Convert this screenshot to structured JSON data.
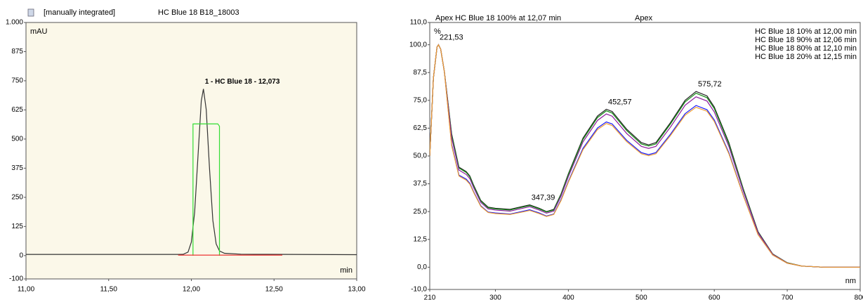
{
  "chart_data": [
    {
      "type": "line",
      "header": [
        "[manually integrated]",
        "HC Blue  18 B18_18003"
      ],
      "ylabel": "mAU",
      "xlabel": "min",
      "xlim": [
        11,
        13
      ],
      "xticks": [
        {
          "value": 11,
          "label": "11,00"
        },
        {
          "value": 11.5,
          "label": "11,50"
        },
        {
          "value": 12,
          "label": "12,00"
        },
        {
          "value": 12.5,
          "label": "12,50"
        },
        {
          "value": 13,
          "label": "13,00"
        }
      ],
      "ylim": [
        -100,
        1000
      ],
      "yticks": [
        {
          "value": 1000,
          "label": "1.000"
        },
        875,
        750,
        625,
        500,
        375,
        250,
        125,
        0,
        -100
      ],
      "background": "#fbf8e9",
      "series": [
        {
          "color": "#333333",
          "x": [
            11,
            11.5,
            11.9,
            11.95,
            11.98,
            12,
            12.02,
            12.04,
            12.06,
            12.073,
            12.09,
            12.11,
            12.13,
            12.15,
            12.17,
            12.2,
            12.3,
            13
          ],
          "values": [
            5,
            5,
            5,
            5.4,
            15,
            58,
            187,
            425,
            663,
            715,
            626,
            372,
            151,
            50,
            20,
            10,
            6,
            4
          ]
        },
        {
          "color": "#33dd33",
          "x": [
            12.01,
            12.01,
            12.16,
            12.17,
            12.17
          ],
          "values": [
            0,
            565,
            565,
            555,
            0
          ]
        },
        {
          "color": "#ee3333",
          "x": [
            11.92,
            12.55
          ],
          "values": [
            2,
            2
          ]
        }
      ],
      "annotations": [
        {
          "text": "1 -  HC Blue 18 - 12,073",
          "x": 12.073,
          "y": 715
        }
      ]
    },
    {
      "type": "line",
      "title": "Apex  HC Blue 18 100% at 12,07 min",
      "subtitle": "Apex",
      "ylabel": "%",
      "xlabel": "nm",
      "xlim": [
        210,
        800
      ],
      "xticks": [
        210,
        300,
        400,
        500,
        600,
        700,
        800
      ],
      "ylim": [
        -10,
        110
      ],
      "yticks": [
        {
          "value": 110,
          "label": "110,0"
        },
        {
          "value": 100,
          "label": "100,0"
        },
        {
          "value": 87.5,
          "label": "87,5"
        },
        {
          "value": 75,
          "label": "75,0"
        },
        {
          "value": 62.5,
          "label": "62,5"
        },
        {
          "value": 50,
          "label": "50,0"
        },
        {
          "value": 37.5,
          "label": "37,5"
        },
        {
          "value": 25,
          "label": "25,0"
        },
        {
          "value": 12.5,
          "label": "12,5"
        },
        {
          "value": 0,
          "label": "0,0"
        },
        {
          "value": -10,
          "label": "-10,0"
        }
      ],
      "background": "#ffffff",
      "x": [
        210,
        215,
        220,
        222,
        225,
        230,
        240,
        250,
        260,
        265,
        270,
        280,
        290,
        300,
        320,
        340,
        347,
        360,
        370,
        380,
        390,
        400,
        420,
        440,
        452,
        460,
        480,
        500,
        510,
        520,
        540,
        560,
        575,
        590,
        600,
        620,
        640,
        660,
        680,
        700,
        720,
        750,
        800
      ],
      "series": [
        {
          "color": "#222222",
          "values": [
            50,
            85,
            99,
            100,
            98,
            88,
            60,
            45,
            43,
            41,
            37,
            30,
            27,
            26.5,
            26,
            27.5,
            28,
            26.5,
            25,
            26,
            33,
            42,
            58,
            68,
            71,
            70,
            62,
            56,
            55,
            56,
            65,
            75,
            79,
            77,
            72,
            56,
            35,
            16,
            6,
            2,
            0.5,
            0,
            0
          ]
        },
        {
          "name": "HC Blue 18 10% at 12,00 min",
          "color": "#1a1aff",
          "values": [
            50,
            85,
            99,
            100,
            98,
            88,
            55.2,
            41.4,
            39.6,
            37.7,
            34,
            27.6,
            24.8,
            24.4,
            23.9,
            25.3,
            25.8,
            24.4,
            23,
            23.9,
            30.4,
            38.6,
            53.4,
            62.6,
            65.3,
            64.4,
            57,
            51.5,
            50.6,
            51.5,
            59.8,
            69,
            72.7,
            70.8,
            66.2,
            51.5,
            32.2,
            14.7,
            5.5,
            1.8,
            0.5,
            0,
            0
          ]
        },
        {
          "name": "HC Blue 18 90% at 12,06 min",
          "color": "#148c14",
          "values": [
            50,
            85,
            99,
            100,
            98,
            88,
            59.4,
            44.6,
            42.6,
            40.6,
            36.6,
            29.7,
            26.7,
            26.2,
            25.7,
            27.2,
            27.7,
            26.2,
            24.8,
            25.7,
            32.7,
            41.6,
            57.4,
            67.3,
            70.3,
            69.3,
            61.4,
            55.4,
            54.5,
            55.4,
            64.4,
            74.3,
            78.2,
            76.2,
            71.3,
            55.4,
            34.7,
            15.8,
            5.9,
            2,
            0.5,
            0,
            0
          ]
        },
        {
          "name": "HC Blue 18 80% at 12,10 min",
          "color": "#8b1a9b",
          "values": [
            50,
            85,
            99,
            100,
            98,
            88,
            58.2,
            43.7,
            41.7,
            39.8,
            35.9,
            29.1,
            26.2,
            25.7,
            25.2,
            26.7,
            27.2,
            25.7,
            24.3,
            25.2,
            32,
            40.7,
            56.3,
            66,
            68.9,
            67.9,
            60.1,
            54.3,
            53.4,
            54.3,
            63,
            72.8,
            76.6,
            74.7,
            69.8,
            54.3,
            34,
            15.5,
            5.8,
            1.9,
            0.5,
            0,
            0
          ]
        },
        {
          "name": "HC Blue 18 20% at 12,15 min",
          "color": "#f0a030",
          "values": [
            50,
            85,
            99,
            100,
            98,
            88,
            54.6,
            41,
            39.1,
            37.3,
            33.7,
            27.3,
            24.6,
            24.1,
            23.7,
            25,
            25.5,
            24.1,
            22.8,
            23.7,
            30,
            38.2,
            52.8,
            61.9,
            64.6,
            63.7,
            56.4,
            51,
            50.1,
            51,
            59.2,
            68.3,
            71.9,
            70.1,
            65.5,
            51,
            31.9,
            14.6,
            5.5,
            1.8,
            0.5,
            0,
            0
          ]
        }
      ],
      "annotations": [
        {
          "text": "221,53",
          "x": 221.53,
          "y": 100
        },
        {
          "text": "347,39",
          "x": 347.39,
          "y": 28
        },
        {
          "text": "452,57",
          "x": 452.57,
          "y": 71
        },
        {
          "text": "575,72",
          "x": 575.72,
          "y": 79
        }
      ]
    }
  ]
}
